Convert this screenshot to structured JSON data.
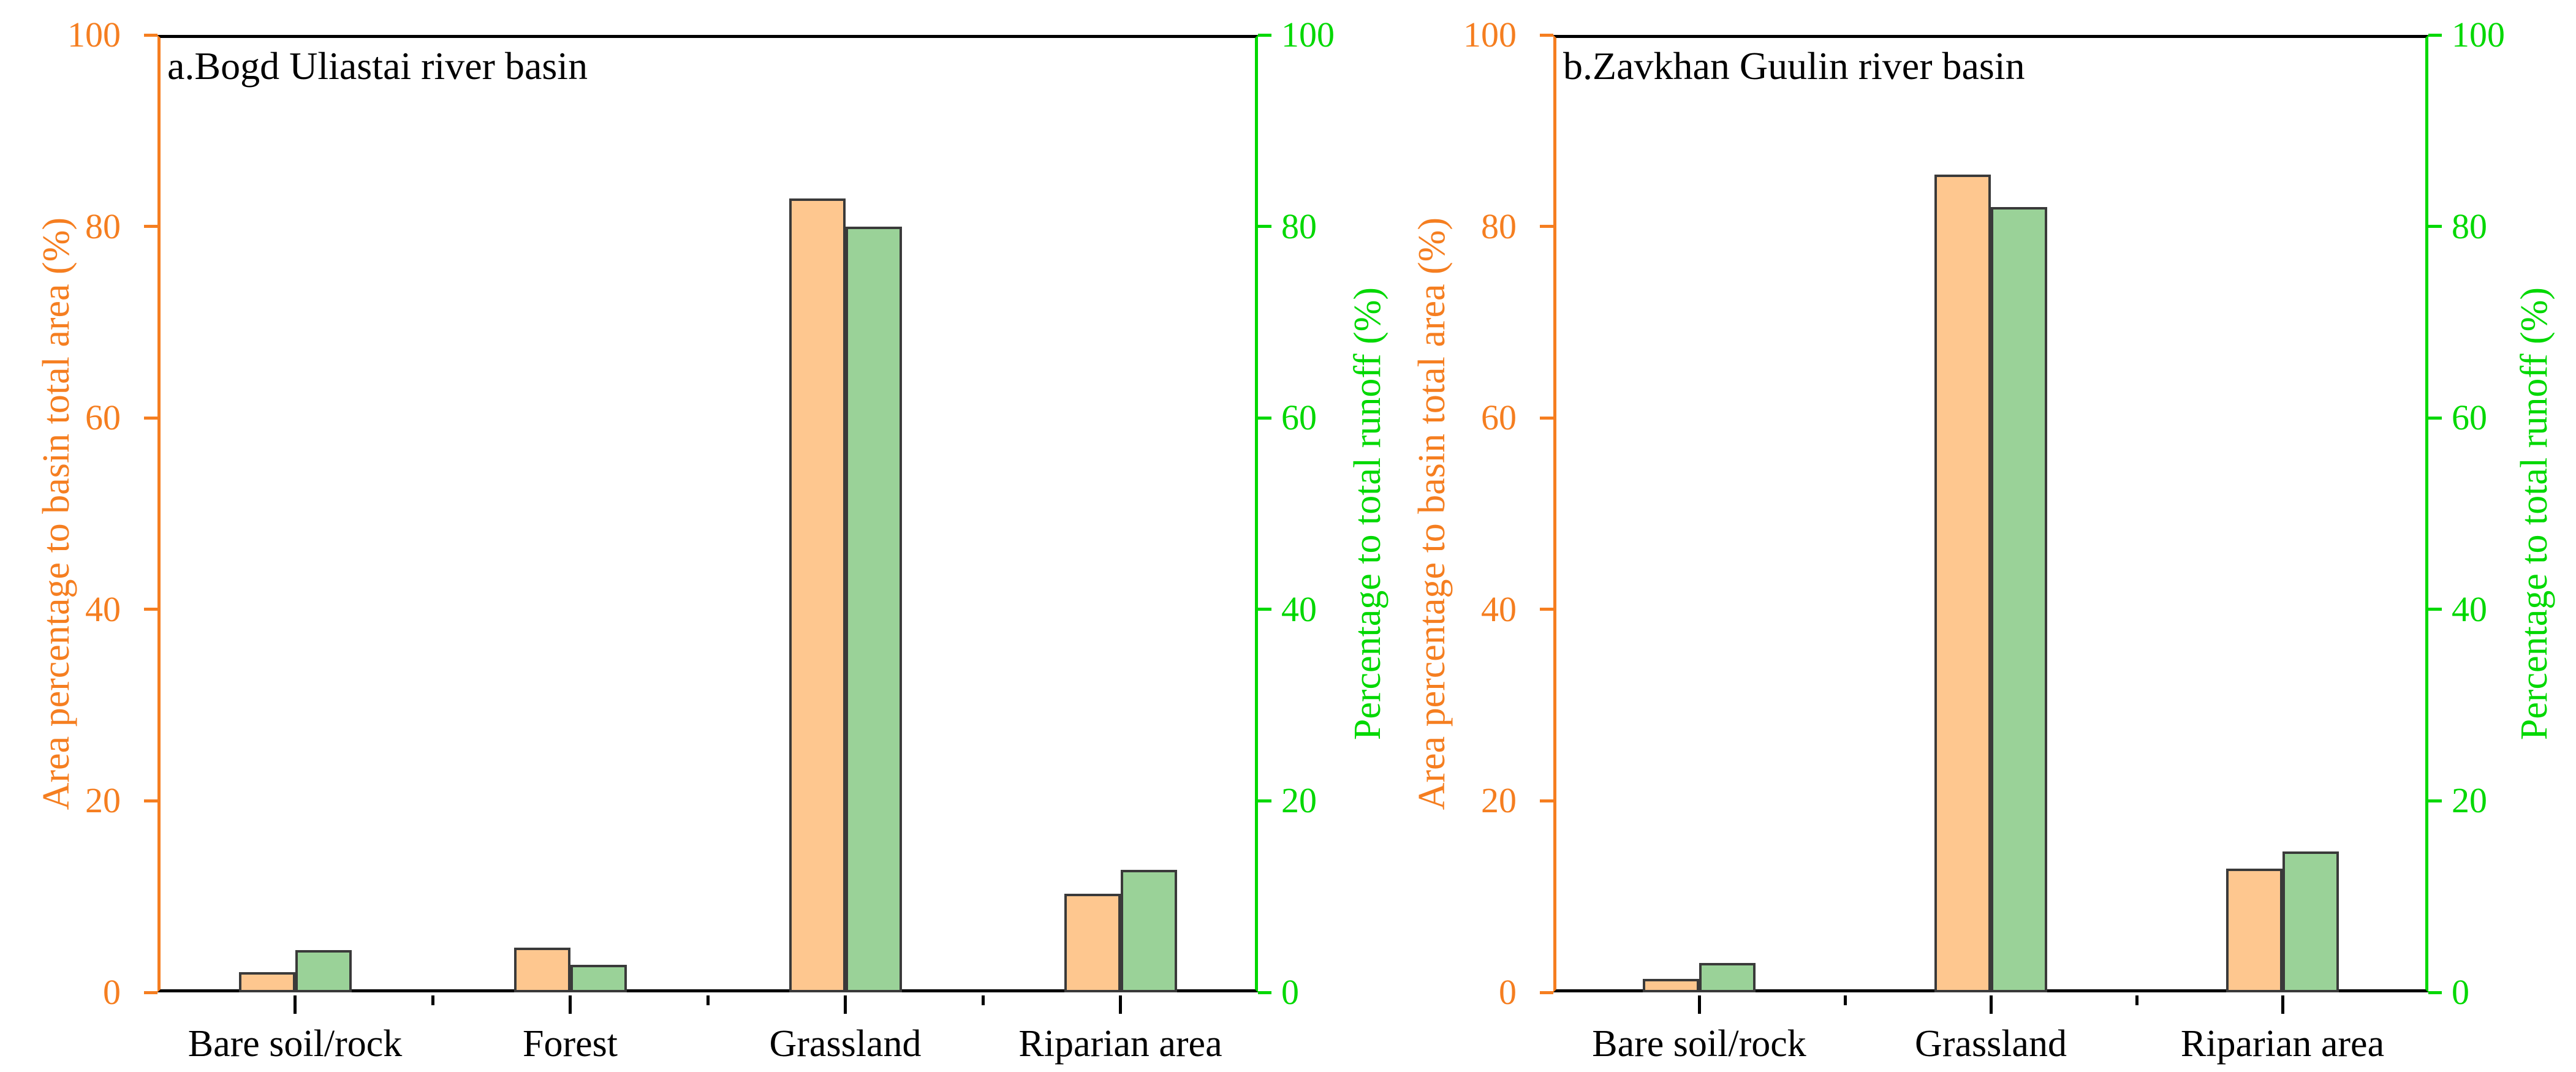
{
  "chart_data": [
    {
      "type": "bar",
      "panel": "a",
      "title": "a.Bogd Uliastai river basin",
      "categories": [
        "Bare soil/rock",
        "Forest",
        "Grassland",
        "Riparian area"
      ],
      "series": [
        {
          "name": "Area percentage to basin total area (%)",
          "axis": "left",
          "values": [
            2.1,
            4.7,
            82.9,
            10.3
          ]
        },
        {
          "name": "Percentage to total runoff (%)",
          "axis": "right",
          "values": [
            4.4,
            2.9,
            80.0,
            12.8
          ]
        }
      ],
      "ylabel_left": "Area percentage to basin total area (%)",
      "ylabel_right": "Percentage to total runoff (%)",
      "ylim": [
        0,
        100
      ],
      "yticks": [
        0,
        20,
        40,
        60,
        80,
        100
      ],
      "grid": false,
      "legend": "none"
    },
    {
      "type": "bar",
      "panel": "b",
      "title": "b.Zavkhan Guulin river basin",
      "categories": [
        "Bare soil/rock",
        "Grassland",
        "Riparian area"
      ],
      "series": [
        {
          "name": "Area percentage to basin total area (%)",
          "axis": "left",
          "values": [
            1.4,
            85.4,
            12.9
          ]
        },
        {
          "name": "Percentage to total runoff (%)",
          "axis": "right",
          "values": [
            3.1,
            82.0,
            14.7
          ]
        }
      ],
      "ylabel_left": "Area percentage to basin total area (%)",
      "ylabel_right": "Percentage to total runoff (%)",
      "ylim": [
        0,
        100
      ],
      "yticks": [
        0,
        20,
        40,
        60,
        80,
        100
      ],
      "grid": false,
      "legend": "none"
    }
  ],
  "styles": {
    "left_axis_color": "#F57E20",
    "right_axis_color": "#00D800",
    "area_bar_fill": "#FEC78F",
    "runoff_bar_fill": "#9AD298",
    "bar_edge_color": "#3A3A3A",
    "frame_color": "#000000",
    "text_color": "#000000"
  }
}
